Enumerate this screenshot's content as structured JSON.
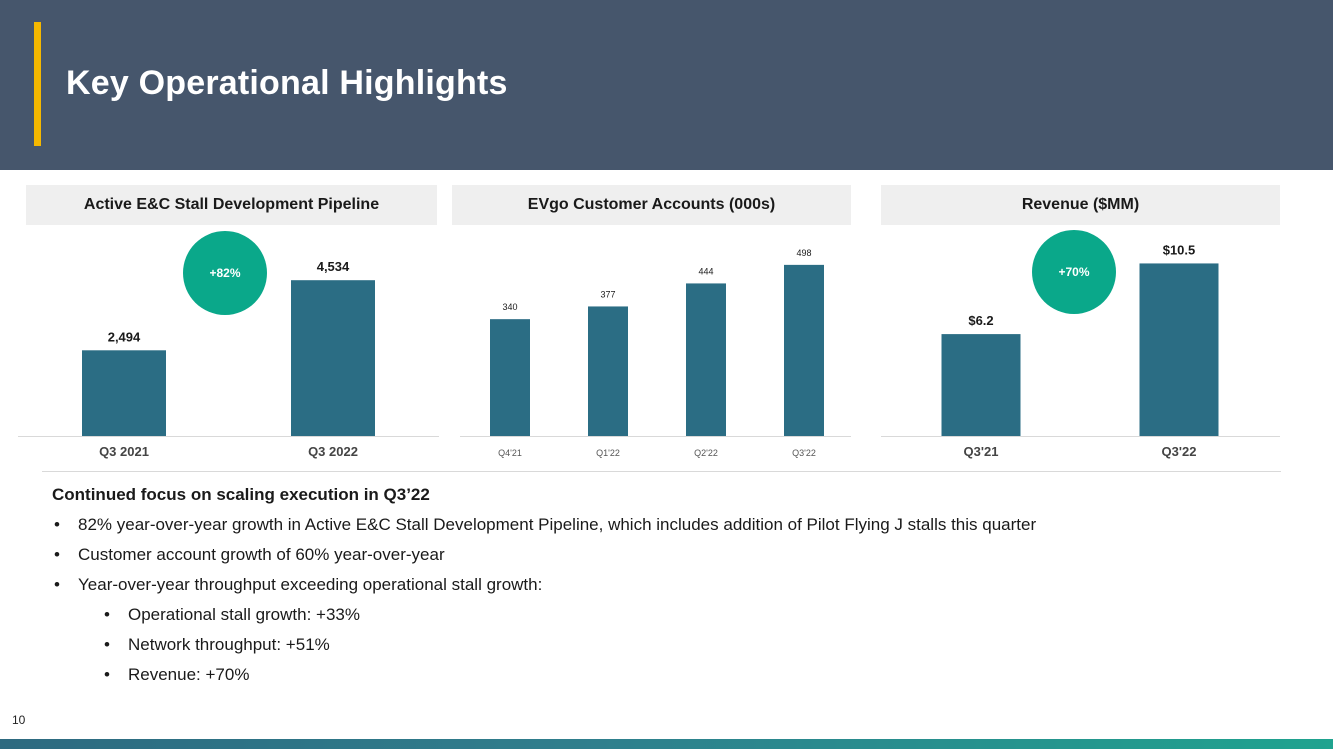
{
  "slide": {
    "title": "Key Operational Highlights",
    "page_number": "10"
  },
  "colors": {
    "header_bg": "#46566c",
    "accent": "#f5b800",
    "bar": "#2b6d84",
    "badge": "#0aa88a",
    "panel_bg": "#efefef"
  },
  "chart_data": [
    {
      "type": "bar",
      "title": "Active E&C Stall Development Pipeline",
      "categories": [
        "Q3 2021",
        "Q3 2022"
      ],
      "values": [
        2494,
        4534
      ],
      "value_labels": [
        "2,494",
        "4,534"
      ],
      "badge": "+82%",
      "ylim": [
        0,
        5500
      ]
    },
    {
      "type": "bar",
      "title": "EVgo Customer Accounts (000s)",
      "categories": [
        "Q4'21",
        "Q1'22",
        "Q2'22",
        "Q3'22"
      ],
      "values": [
        340,
        377,
        444,
        498
      ],
      "value_labels": [
        "340",
        "377",
        "444",
        "498"
      ],
      "ylim": [
        0,
        550
      ]
    },
    {
      "type": "bar",
      "title": "Revenue ($MM)",
      "categories": [
        "Q3'21",
        "Q3'22"
      ],
      "values": [
        6.2,
        10.5
      ],
      "value_labels": [
        "$6.2",
        "$10.5"
      ],
      "badge": "+70%",
      "ylim": [
        0,
        11.5
      ]
    }
  ],
  "highlights": {
    "heading": "Continued focus on scaling execution in Q3’22",
    "bullets": [
      "82% year-over-year growth in Active E&C Stall Development Pipeline, which includes addition of Pilot Flying J stalls this quarter",
      "Customer account growth of 60% year-over-year",
      "Year-over-year throughput exceeding operational stall growth:"
    ],
    "sub_bullets": [
      "Operational stall growth: +33%",
      "Network throughput: +51%",
      "Revenue: +70%"
    ]
  }
}
